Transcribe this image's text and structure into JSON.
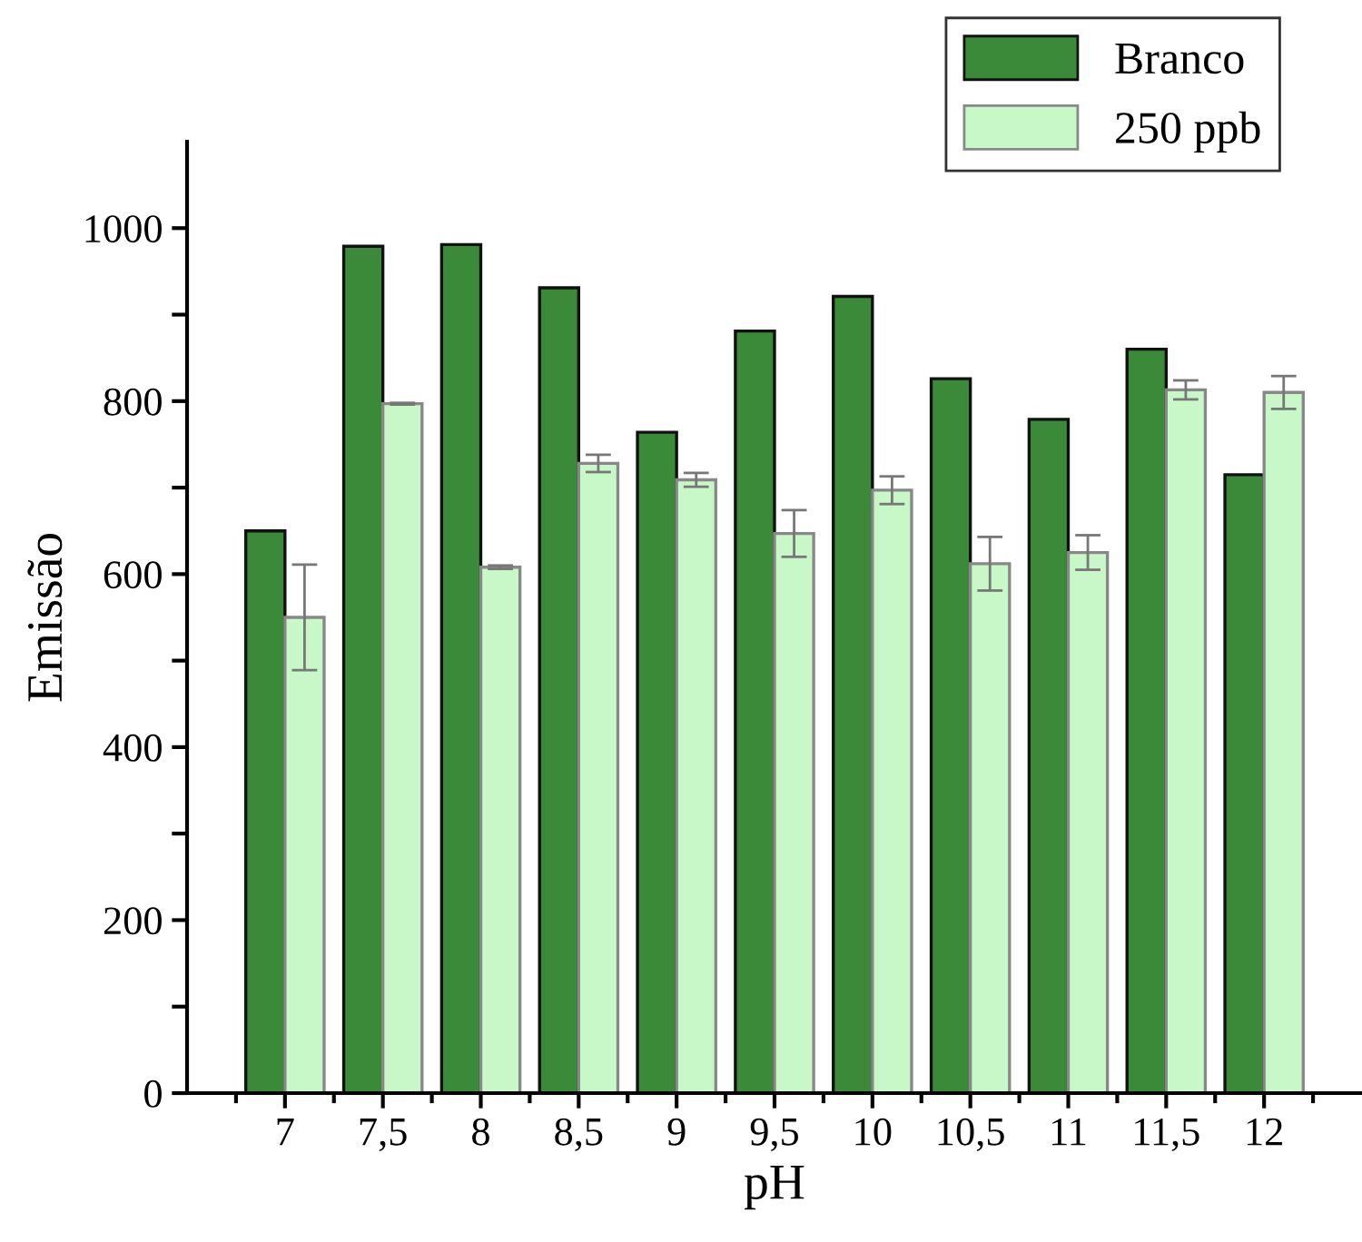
{
  "chart_data": {
    "type": "bar",
    "xlabel": "pH",
    "ylabel": "Emissão",
    "categories": [
      "7",
      "7,5",
      "8",
      "8,5",
      "9",
      "9,5",
      "10",
      "10,5",
      "11",
      "11,5",
      "12"
    ],
    "series": [
      {
        "name": "Branco",
        "color": "#3a8a3a",
        "values": [
          650,
          979,
          981,
          931,
          764,
          881,
          921,
          826,
          779,
          860,
          715
        ]
      },
      {
        "name": "250 ppb",
        "color": "#c8f8c8",
        "values": [
          550,
          797,
          608,
          728,
          709,
          647,
          697,
          612,
          625,
          813,
          810
        ],
        "errors": [
          61,
          1,
          2,
          10,
          8,
          27,
          16,
          31,
          20,
          11,
          19
        ]
      }
    ],
    "ylim": [
      0,
      1100
    ],
    "yticks": [
      0,
      {
        "value": 100,
        "label": null
      },
      200,
      {
        "value": 300,
        "label": null
      },
      400,
      {
        "value": 500,
        "label": null
      },
      600,
      {
        "value": 700,
        "label": null
      },
      800,
      {
        "value": 900,
        "label": null
      },
      1000
    ],
    "grid": false,
    "legend": "top right"
  }
}
